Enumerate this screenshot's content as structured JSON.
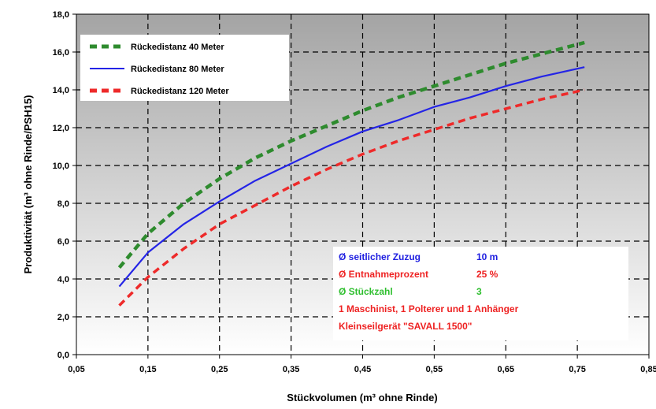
{
  "chart_data": {
    "type": "line",
    "title": "",
    "xlabel": "Stückvolumen (m³ ohne Rinde)",
    "ylabel": "Produktivität (m³ ohne Rinde/PSH15)",
    "xlim": [
      0.05,
      0.85
    ],
    "ylim": [
      0,
      18
    ],
    "x_ticks": [
      "0,05",
      "0,15",
      "0,25",
      "0,35",
      "0,45",
      "0,55",
      "0,65",
      "0,75",
      "0,85"
    ],
    "y_ticks": [
      "0,0",
      "2,0",
      "4,0",
      "6,0",
      "8,0",
      "10,0",
      "12,0",
      "14,0",
      "16,0",
      "18,0"
    ],
    "grid": true,
    "legend_position": "top-left",
    "series": [
      {
        "name": "Rückedistanz 40 Meter",
        "color": "#2e8b2e",
        "dash": "dashed",
        "x": [
          0.11,
          0.15,
          0.2,
          0.25,
          0.3,
          0.35,
          0.4,
          0.45,
          0.5,
          0.55,
          0.6,
          0.65,
          0.7,
          0.76
        ],
        "y": [
          4.6,
          6.4,
          8.0,
          9.3,
          10.4,
          11.3,
          12.1,
          12.9,
          13.6,
          14.2,
          14.8,
          15.4,
          15.9,
          16.5
        ]
      },
      {
        "name": "Rückedistanz 80 Meter",
        "color": "#2424e6",
        "dash": "solid",
        "x": [
          0.11,
          0.15,
          0.2,
          0.25,
          0.3,
          0.35,
          0.4,
          0.45,
          0.5,
          0.55,
          0.6,
          0.65,
          0.7,
          0.76
        ],
        "y": [
          3.6,
          5.4,
          6.9,
          8.1,
          9.2,
          10.1,
          11.0,
          11.8,
          12.4,
          13.1,
          13.6,
          14.2,
          14.7,
          15.2
        ]
      },
      {
        "name": "Rückedistanz 120 Meter",
        "color": "#ee2a2a",
        "dash": "dashed",
        "x": [
          0.11,
          0.15,
          0.2,
          0.25,
          0.3,
          0.35,
          0.4,
          0.45,
          0.5,
          0.55,
          0.6,
          0.65,
          0.7,
          0.76
        ],
        "y": [
          2.6,
          4.1,
          5.6,
          6.9,
          7.9,
          8.9,
          9.8,
          10.6,
          11.3,
          11.9,
          12.5,
          13.0,
          13.5,
          14.0
        ]
      }
    ],
    "annotations": [
      {
        "label": "Ø seitlicher Zuzug",
        "value": "10 m",
        "color": "#1e1ee0"
      },
      {
        "label": "Ø Entnahmeprozent",
        "value": "25 %",
        "color": "#ee2222"
      },
      {
        "label": "Ø Stückzahl",
        "value": "3",
        "color": "#2fbf2f"
      },
      {
        "label": "1 Maschinist, 1 Polterer und 1 Anhänger",
        "value": "",
        "color": "#ee2222"
      },
      {
        "label": "Kleinseilgerät \"SAVALL 1500\"",
        "value": "",
        "color": "#ee2222"
      }
    ]
  }
}
